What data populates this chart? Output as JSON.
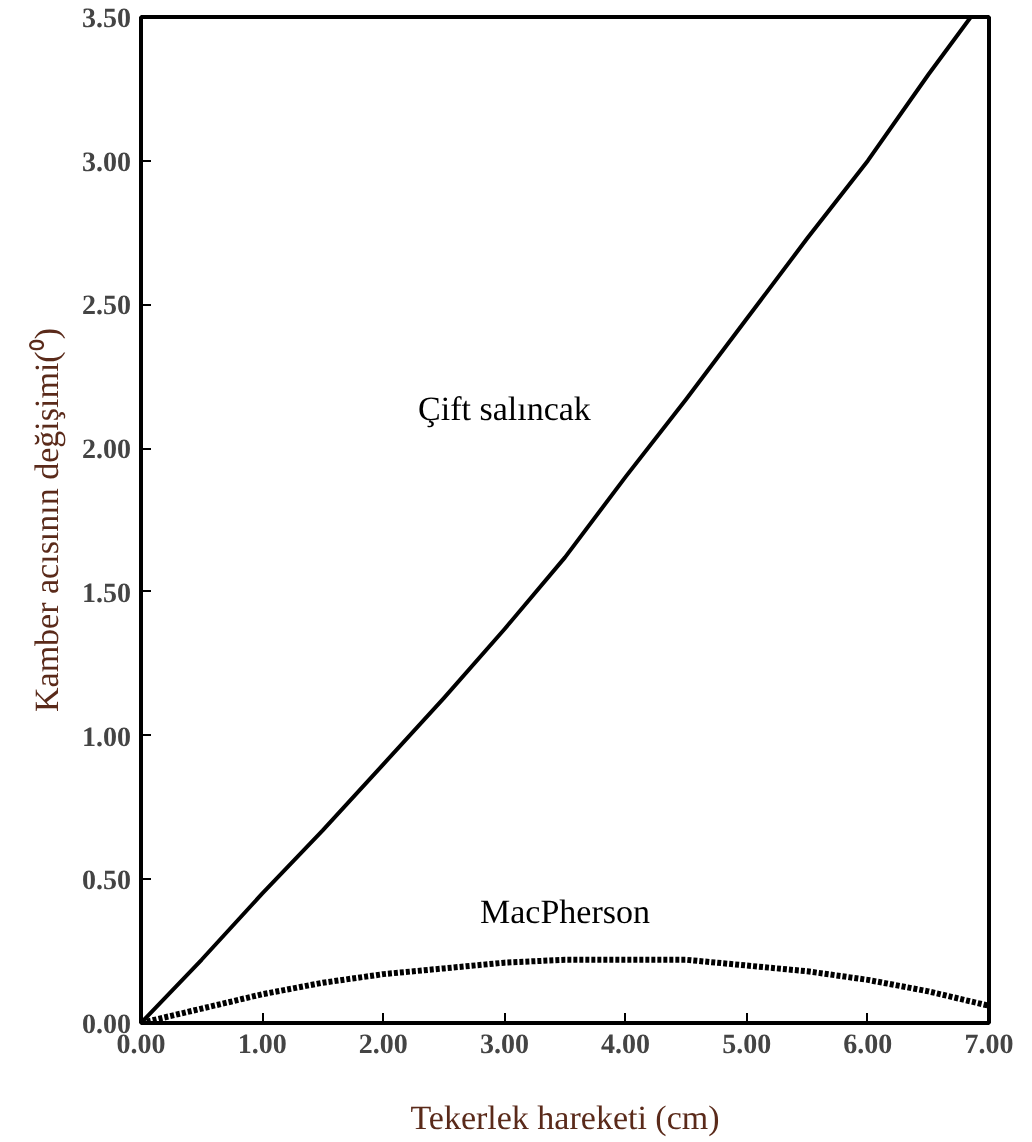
{
  "chart_data": {
    "type": "line",
    "xlabel": "Tekerlek hareketi (cm)",
    "ylabel": "Kamber acısının değişimi(⁰)",
    "xlim": [
      0,
      7
    ],
    "ylim": [
      0,
      3.5
    ],
    "xticks": [
      {
        "value": 0,
        "label": "0.00"
      },
      {
        "value": 1,
        "label": "1.00"
      },
      {
        "value": 2,
        "label": "2.00"
      },
      {
        "value": 3,
        "label": "3.00"
      },
      {
        "value": 4,
        "label": "4.00"
      },
      {
        "value": 5,
        "label": "5.00"
      },
      {
        "value": 6,
        "label": "6.00"
      },
      {
        "value": 7,
        "label": "7.00"
      }
    ],
    "yticks": [
      {
        "value": 0,
        "label": "0.00"
      },
      {
        "value": 0.5,
        "label": "0.50"
      },
      {
        "value": 1,
        "label": "1.00"
      },
      {
        "value": 1.5,
        "label": "1.50"
      },
      {
        "value": 2,
        "label": "2.00"
      },
      {
        "value": 2.5,
        "label": "2.50"
      },
      {
        "value": 3,
        "label": "3.00"
      },
      {
        "value": 3.5,
        "label": "3.50"
      }
    ],
    "grid": false,
    "legend": false,
    "series": [
      {
        "name": "Çift salıncak",
        "color": "#000000",
        "line_style": "solid",
        "x": [
          0,
          0.5,
          1,
          1.5,
          2,
          2.5,
          3,
          3.5,
          4,
          4.5,
          5,
          5.5,
          6,
          6.5,
          6.85
        ],
        "values": [
          0,
          0.22,
          0.45,
          0.67,
          0.9,
          1.13,
          1.37,
          1.62,
          1.9,
          2.17,
          2.45,
          2.73,
          3.0,
          3.3,
          3.5
        ]
      },
      {
        "name": "MacPherson",
        "color": "#000000",
        "line_style": "dotted",
        "x": [
          0,
          0.5,
          1,
          1.5,
          2,
          2.5,
          3,
          3.5,
          4,
          4.5,
          5,
          5.5,
          6,
          6.5,
          7
        ],
        "values": [
          0,
          0.05,
          0.1,
          0.14,
          0.17,
          0.19,
          0.21,
          0.22,
          0.22,
          0.22,
          0.2,
          0.18,
          0.15,
          0.11,
          0.06
        ]
      }
    ]
  }
}
